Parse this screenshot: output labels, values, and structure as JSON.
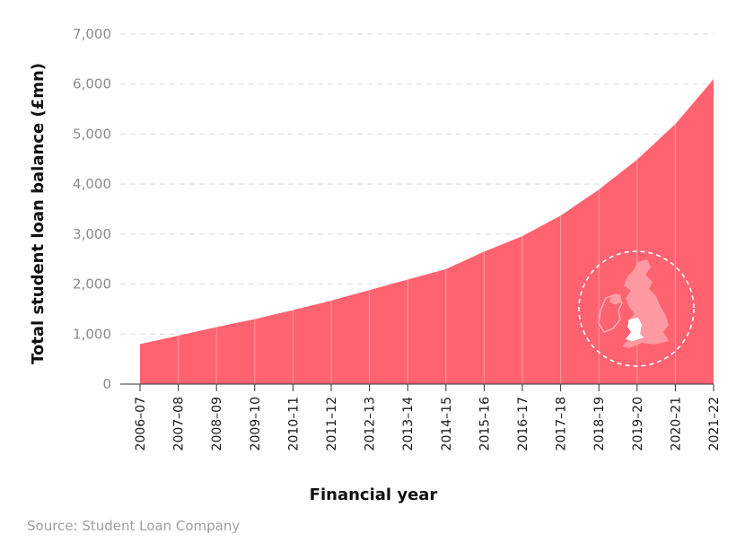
{
  "chart_data": {
    "type": "area",
    "title": "",
    "xlabel": "Financial year",
    "ylabel": "Total student loan balance (£mn)",
    "categories": [
      "2006–07",
      "2007–08",
      "2008–09",
      "2009–10",
      "2010–11",
      "2011–12",
      "2012–13",
      "2013–14",
      "2014–15",
      "2015–16",
      "2016–17",
      "2017–18",
      "2018–19",
      "2019–20",
      "2020–21",
      "2021–22"
    ],
    "values": [
      800,
      970,
      1140,
      1300,
      1480,
      1670,
      1880,
      2090,
      2300,
      2650,
      2960,
      3370,
      3890,
      4490,
      5200,
      6100
    ],
    "ylim": [
      0,
      7000
    ],
    "yticks": [
      0,
      1000,
      2000,
      3000,
      4000,
      5000,
      6000,
      7000
    ],
    "ytick_labels": [
      "0",
      "1,000",
      "2,000",
      "3,000",
      "4,000",
      "5,000",
      "6,000",
      "7,000"
    ],
    "grid": "horizontal dashed",
    "legend": "none",
    "colors": {
      "area": "#ff6370",
      "grid": "#d9d9d9",
      "map_fill": "#ff9aa3",
      "wales": "#ffffff"
    },
    "annotation_icon": "uk-map-wales-highlight-icon"
  },
  "source": "Source: Student Loan Company"
}
